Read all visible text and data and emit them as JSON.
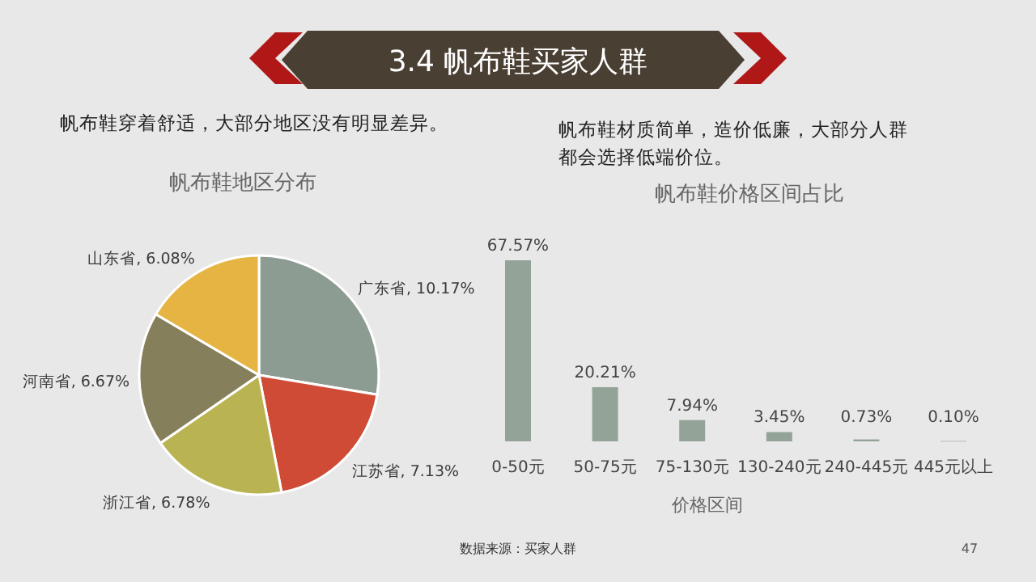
{
  "chart_data": [
    {
      "type": "pie",
      "title": "帆布鞋地区分布",
      "annotations": [
        "3.4 帆布鞋买家人群",
        "帆布鞋穿着舒适，大部分地区没有明显差异。"
      ],
      "categories": [
        "广东省",
        "江苏省",
        "浙江省",
        "河南省",
        "山东省"
      ],
      "values": [
        10.17,
        7.13,
        6.78,
        6.67,
        6.08
      ],
      "value_labels": [
        "10.17%",
        "7.13%",
        "6.78%",
        "6.67%",
        "6.08%"
      ],
      "colors": [
        "#8d9c92",
        "#cf4b35",
        "#b9b352",
        "#867f5b",
        "#e6b443"
      ]
    },
    {
      "type": "bar",
      "title": "帆布鞋价格区间占比",
      "xlabel": "价格区间",
      "annotations": [
        "帆布鞋材质简单，造价低廉，大部分人群都会选择低端价位。",
        "数据来源：买家人群",
        "47"
      ],
      "categories": [
        "0-50元",
        "50-75元",
        "75-130元",
        "130-240元",
        "240-445元",
        "445元以上"
      ],
      "values": [
        67.57,
        20.21,
        7.94,
        3.45,
        0.73,
        0.1
      ],
      "value_labels": [
        "67.57%",
        "20.21%",
        "7.94%",
        "3.45%",
        "0.73%",
        "0.10%"
      ],
      "color": "#93a398"
    }
  ]
}
